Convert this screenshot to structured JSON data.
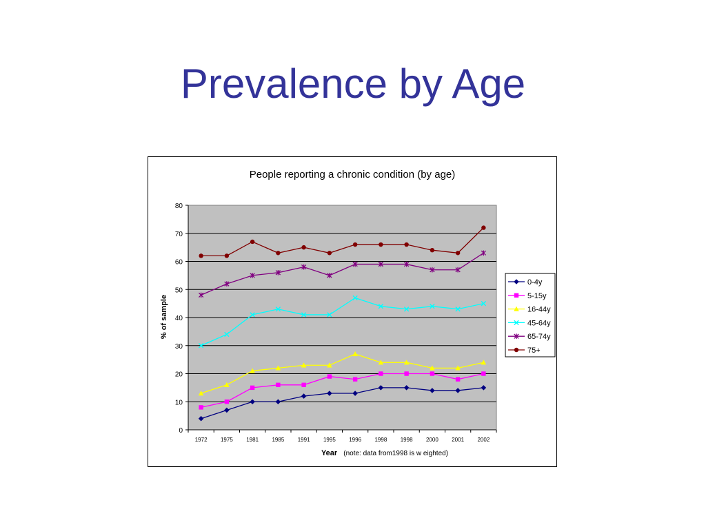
{
  "slide": {
    "title": "Prevalence by Age"
  },
  "chart_data": {
    "type": "line",
    "title": "People reporting a chronic condition (by age)",
    "xlabel": "Year",
    "xnote": "(note: data from1998 is w eighted)",
    "ylabel": "% of sample",
    "ylim": [
      0,
      80
    ],
    "yticks": [
      0,
      10,
      20,
      30,
      40,
      50,
      60,
      70,
      80
    ],
    "grid": true,
    "legend": "right",
    "categories": [
      "1972",
      "1975",
      "1981",
      "1985",
      "1991",
      "1995",
      "1996",
      "1998",
      "1998",
      "2000",
      "2001",
      "2002"
    ],
    "series": [
      {
        "name": "0-4y",
        "color": "#000080",
        "marker": "diamond",
        "values": [
          4,
          7,
          10,
          10,
          12,
          13,
          13,
          15,
          15,
          14,
          14,
          15
        ]
      },
      {
        "name": "5-15y",
        "color": "#ff00ff",
        "marker": "square",
        "values": [
          8,
          10,
          15,
          16,
          16,
          19,
          18,
          20,
          20,
          20,
          18,
          20
        ]
      },
      {
        "name": "16-44y",
        "color": "#ffff00",
        "marker": "triangle",
        "values": [
          13,
          16,
          21,
          22,
          23,
          23,
          27,
          24,
          24,
          22,
          22,
          24
        ]
      },
      {
        "name": "45-64y",
        "color": "#00ffff",
        "marker": "x",
        "values": [
          30,
          34,
          41,
          43,
          41,
          41,
          47,
          44,
          43,
          44,
          43,
          45
        ]
      },
      {
        "name": "65-74y",
        "color": "#800080",
        "marker": "star",
        "values": [
          48,
          52,
          55,
          56,
          58,
          55,
          59,
          59,
          59,
          57,
          57,
          63
        ]
      },
      {
        "name": "75+",
        "color": "#800000",
        "marker": "circle",
        "values": [
          62,
          62,
          67,
          63,
          65,
          63,
          66,
          66,
          66,
          64,
          63,
          72
        ]
      }
    ]
  }
}
